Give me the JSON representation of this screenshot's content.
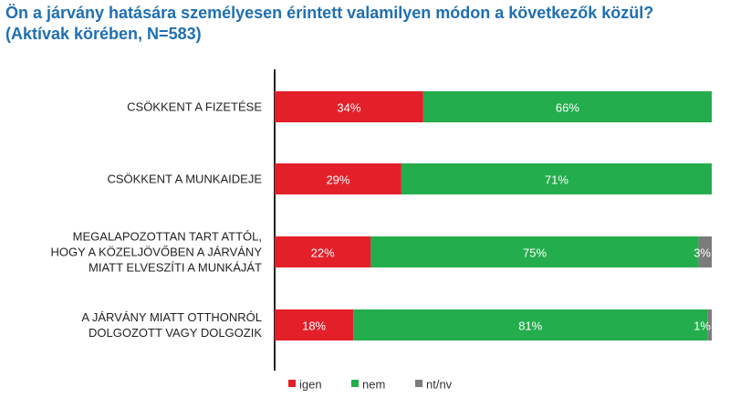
{
  "chart_data": {
    "type": "bar",
    "orientation": "horizontal",
    "stacked": true,
    "title": "Ön a járvány hatására személyesen érintett valamilyen módon a következők közül?",
    "subtitle": "(Aktívak körében, N=583)",
    "categories": [
      [
        "CSÖKKENT A FIZETÉSE"
      ],
      [
        "CSÖKKENT A MUNKAIDEJE"
      ],
      [
        "MEGALAPOZOTTAN TART ATTÓL,",
        "HOGY A KÖZELJÖVŐBEN A JÁRVÁNY",
        "MIATT ELVESZÍTI A MUNKÁJÁT"
      ],
      [
        "A JÁRVÁNY MIATT OTTHONRÓL",
        "DOLGOZOTT VAGY DOLGOZIK"
      ]
    ],
    "series": [
      {
        "name": "igen",
        "color": "#e3202a",
        "values": [
          34,
          29,
          22,
          18
        ],
        "labels": [
          "34%",
          "29%",
          "22%",
          "18%"
        ]
      },
      {
        "name": "nem",
        "color": "#24ad4d",
        "values": [
          66,
          71,
          75,
          81
        ],
        "labels": [
          "66%",
          "71%",
          "75%",
          "81%"
        ]
      },
      {
        "name": "nt/nv",
        "color": "#7b7b7b",
        "values": [
          0,
          0,
          3,
          1
        ],
        "labels": [
          "",
          "",
          "3%",
          "1%"
        ]
      }
    ],
    "xlim": [
      0,
      100
    ],
    "grid": false,
    "legend": "bottom"
  }
}
